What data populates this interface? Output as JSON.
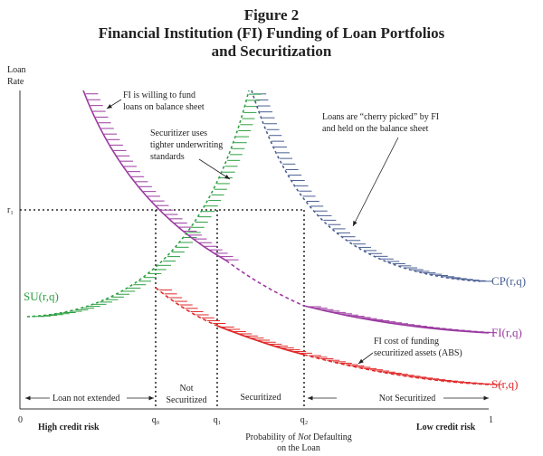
{
  "figure": {
    "label": "Figure 2",
    "title": [
      "Financial Institution (FI) Funding of Loan Portfolios",
      "and Securitization"
    ]
  },
  "y_axis": {
    "label": [
      "Loan",
      "Rate"
    ],
    "rate": "r₁"
  },
  "x_axis": {
    "origin": "0",
    "end": "1",
    "left": "High credit risk",
    "right": "Low credit risk",
    "q0": "q₀",
    "q1": "q₁",
    "q2": "q₂",
    "label": [
      [
        "Probability of ",
        "Not",
        " Defaulting"
      ],
      "on the Loan"
    ]
  },
  "curves": {
    "cp": "CP(r,q)",
    "fi": "FI(r,q)",
    "s": "S(r,q)",
    "su": "SU(r,q)"
  },
  "annotations": {
    "fi_fund": [
      "FI is willing to fund",
      "loans on balance sheet"
    ],
    "securitizer": [
      "Securitizer uses",
      "tighter underwriting",
      "standards"
    ],
    "cherry": [
      "Loans are “cherry picked” by FI",
      "and held on the balance sheet"
    ],
    "cost": [
      "FI cost of funding",
      "securitized assets (ABS)"
    ]
  },
  "regions": {
    "not_extended": "Loan not extended",
    "not_securitized_1": [
      "Not",
      "Securitized"
    ],
    "securitized": "Securitized",
    "not_securitized_2": "Not Securitized"
  }
}
